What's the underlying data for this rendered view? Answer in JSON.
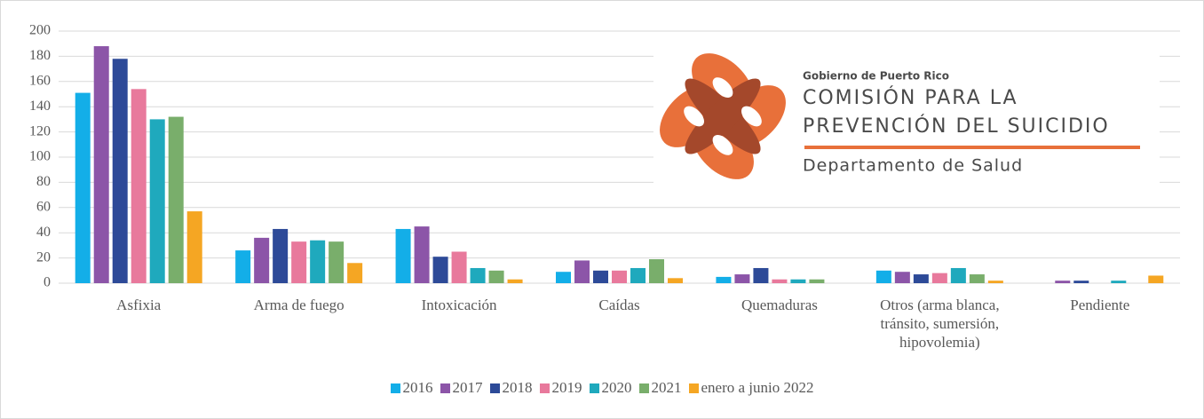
{
  "chart_data": {
    "type": "bar",
    "categories": [
      "Asfixia",
      "Arma de fuego",
      "Intoxicación",
      "Caídas",
      "Quemaduras",
      "Otros (arma blanca, tránsito, sumersión, hipovolemia)",
      "Pendiente"
    ],
    "series": [
      {
        "name": "2016",
        "color": "#13aee8",
        "values": [
          151,
          26,
          43,
          9,
          5,
          10,
          0
        ]
      },
      {
        "name": "2017",
        "color": "#8c55a8",
        "values": [
          188,
          36,
          45,
          18,
          7,
          9,
          2
        ]
      },
      {
        "name": "2018",
        "color": "#2d4a98",
        "values": [
          178,
          43,
          21,
          10,
          12,
          7,
          2
        ]
      },
      {
        "name": "2019",
        "color": "#e8799c",
        "values": [
          154,
          33,
          25,
          10,
          3,
          8,
          0
        ]
      },
      {
        "name": "2020",
        "color": "#1fa9bd",
        "values": [
          130,
          34,
          12,
          12,
          3,
          12,
          2
        ]
      },
      {
        "name": "2021",
        "color": "#79ae6b",
        "values": [
          132,
          33,
          10,
          19,
          3,
          7,
          0
        ]
      },
      {
        "name": "enero a junio 2022",
        "color": "#f5a623",
        "values": [
          57,
          16,
          3,
          4,
          0,
          2,
          6
        ]
      }
    ],
    "ylim": [
      0,
      200
    ],
    "yticks": [
      0,
      20,
      40,
      60,
      80,
      100,
      120,
      140,
      160,
      180,
      200
    ],
    "grid": true,
    "annotations": [
      "Gobierno de Puerto Rico",
      "COMISIÓN PARA LA",
      "PREVENCIÓN DEL SUICIDIO",
      "Departamento de Salud"
    ]
  }
}
